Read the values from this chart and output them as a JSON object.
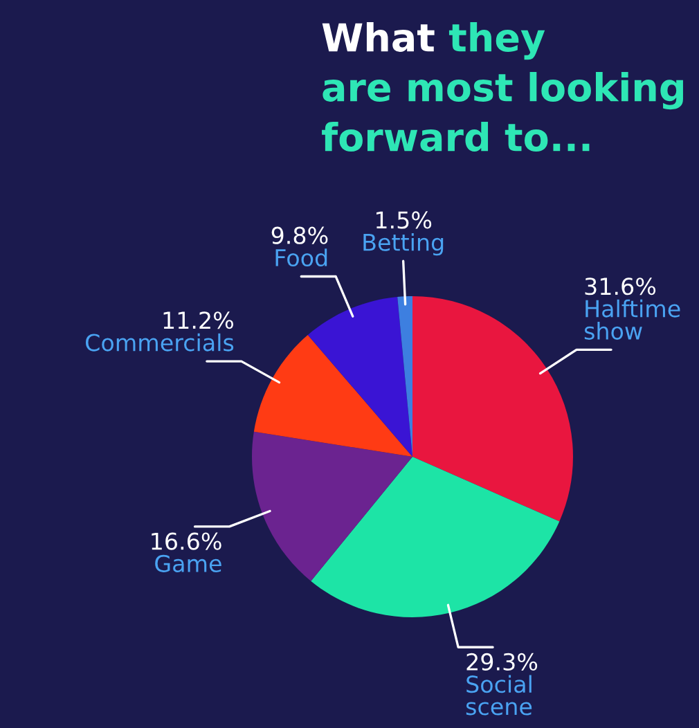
{
  "chart_data": {
    "type": "pie",
    "title": "What they are most looking forward to...",
    "categories": [
      "Halftime show",
      "Social scene",
      "Game",
      "Commercials",
      "Food",
      "Betting"
    ],
    "values": [
      31.6,
      29.3,
      16.6,
      11.2,
      9.8,
      1.5
    ],
    "colors": [
      "#e9163f",
      "#1de4a6",
      "#6b2390",
      "#ff3b14",
      "#3a14d4",
      "#3d7fe0"
    ],
    "value_labels": [
      "31.6%",
      "29.3%",
      "16.6%",
      "11.2%",
      "9.8%",
      "1.5%"
    ],
    "legend": false
  }
}
